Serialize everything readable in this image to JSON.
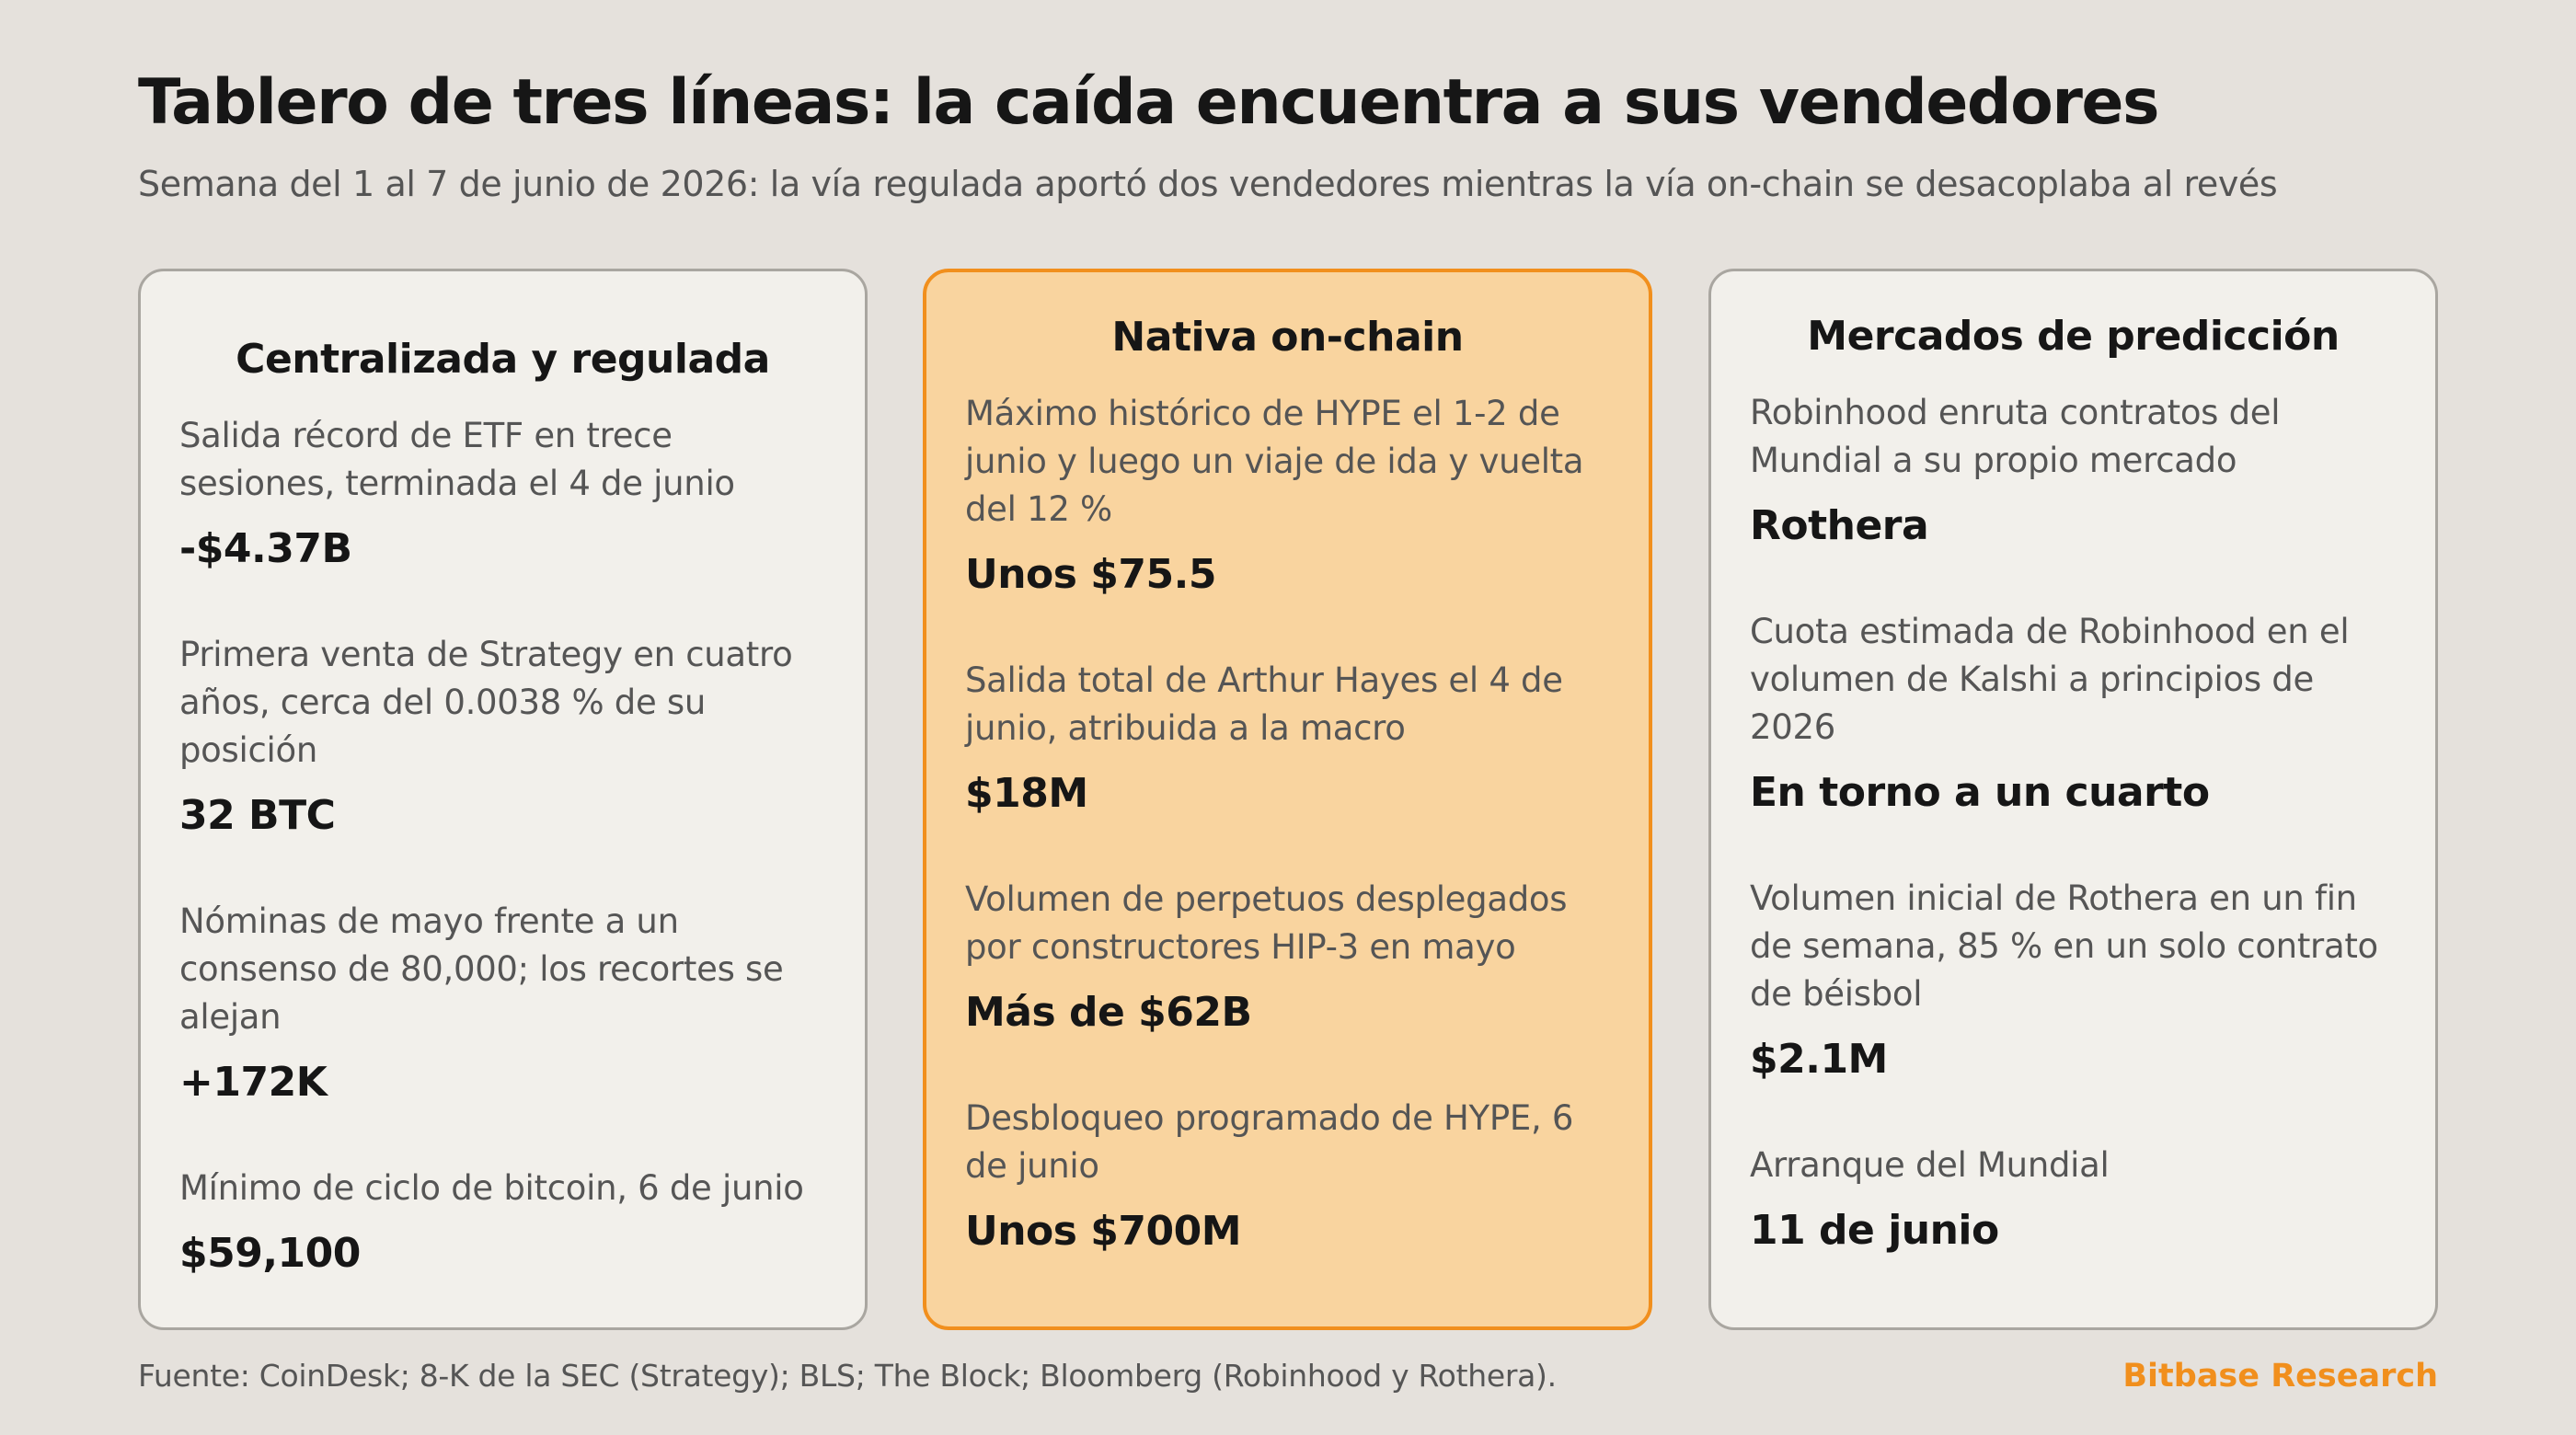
{
  "title": "Tablero de tres líneas: la caída encuentra a sus vendedores",
  "subtitle": "Semana del 1 al 7 de junio de 2026: la vía regulada aportó dos vendedores mientras la vía on-chain se desacoplaba al revés",
  "accent_color": "#f18f1d",
  "highlight_fill": "#f9d49f",
  "cards": [
    {
      "title": "Centralizada y regulada",
      "metrics": [
        {
          "desc": "Salida récord de ETF en trece sesiones, terminada el 4 de junio",
          "value": "-$4.37B"
        },
        {
          "desc": "Primera venta de Strategy en cuatro años, cerca del 0.0038 % de su posición",
          "value": "32 BTC"
        },
        {
          "desc": "Nóminas de mayo frente a un consenso de 80,000; los recortes se alejan",
          "value": "+172K"
        },
        {
          "desc": "Mínimo de ciclo de bitcoin, 6 de junio",
          "value": "$59,100"
        }
      ]
    },
    {
      "title": "Nativa on-chain",
      "metrics": [
        {
          "desc": "Máximo histórico de HYPE el 1-2 de junio y luego un viaje de ida y vuelta del 12 %",
          "value": "Unos $75.5"
        },
        {
          "desc": "Salida total de Arthur Hayes el 4 de junio, atribuida a la macro",
          "value": "$18M"
        },
        {
          "desc": "Volumen de perpetuos desplegados por constructores HIP-3 en mayo",
          "value": "Más de $62B"
        },
        {
          "desc": "Desbloqueo programado de HYPE, 6 de junio",
          "value": "Unos $700M"
        }
      ]
    },
    {
      "title": "Mercados de predicción",
      "metrics": [
        {
          "desc": "Robinhood enruta contratos del Mundial a su propio mercado",
          "value": "Rothera"
        },
        {
          "desc": "Cuota estimada de Robinhood en el volumen de Kalshi a principios de 2026",
          "value": "En torno a un cuarto"
        },
        {
          "desc": "Volumen inicial de Rothera en un fin de semana, 85 % en un solo contrato de béisbol",
          "value": "$2.1M"
        },
        {
          "desc": "Arranque del Mundial",
          "value": "11 de junio"
        }
      ]
    }
  ],
  "source": "Fuente: CoinDesk; 8-K de la SEC (Strategy); BLS; The Block; Bloomberg (Robinhood y Rothera).",
  "brand": "Bitbase Research"
}
